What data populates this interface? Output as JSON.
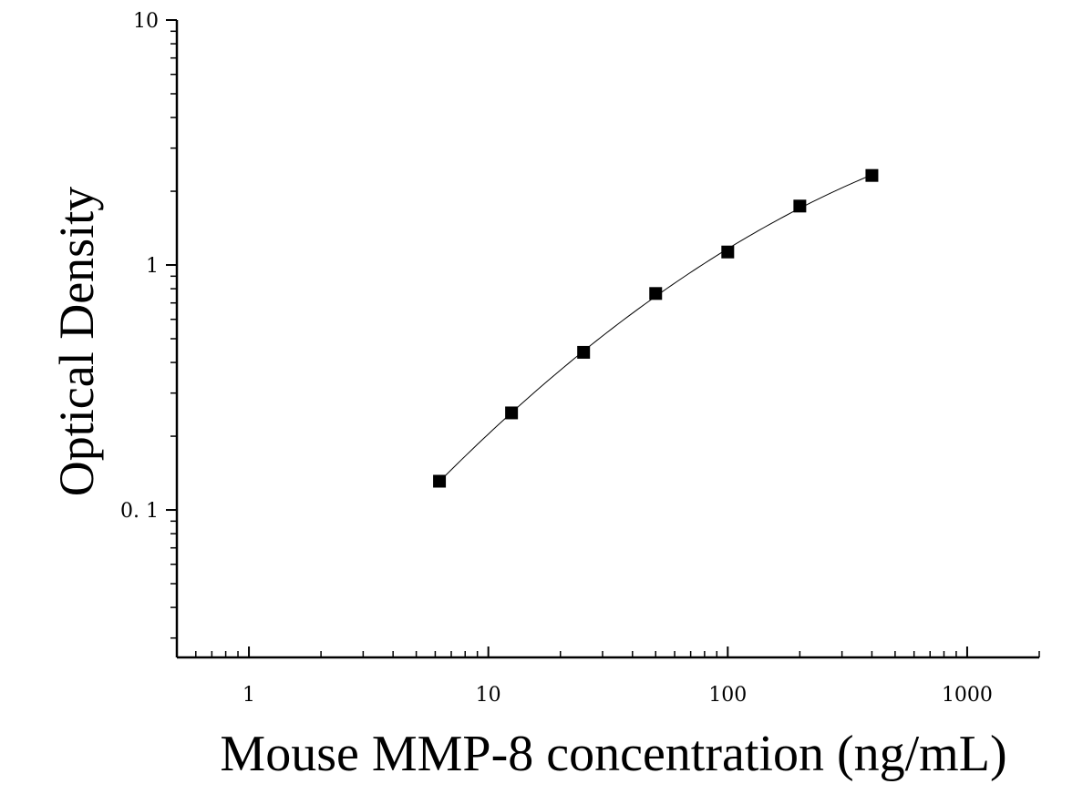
{
  "chart_data": {
    "type": "scatter",
    "xlabel": "Mouse MMP-8 concentration (ng/mL)",
    "ylabel": "Optical Density",
    "x_scale": "log",
    "y_scale": "log",
    "xlim": [
      0.5,
      2000
    ],
    "ylim": [
      0.025,
      10
    ],
    "x_ticks": [
      1,
      10,
      100,
      1000
    ],
    "x_tick_labels": [
      "1",
      "10",
      "100",
      "1000"
    ],
    "y_ticks": [
      0.1,
      1,
      10
    ],
    "y_tick_labels": [
      "0. 1",
      "1",
      "10"
    ],
    "grid": false,
    "series": [
      {
        "marker": "square",
        "color": "#000000",
        "fit_line": true,
        "x": [
          6.25,
          12.5,
          25,
          50,
          100,
          200,
          400
        ],
        "y": [
          0.131,
          0.249,
          0.44,
          0.765,
          1.13,
          1.74,
          2.32
        ]
      }
    ]
  }
}
